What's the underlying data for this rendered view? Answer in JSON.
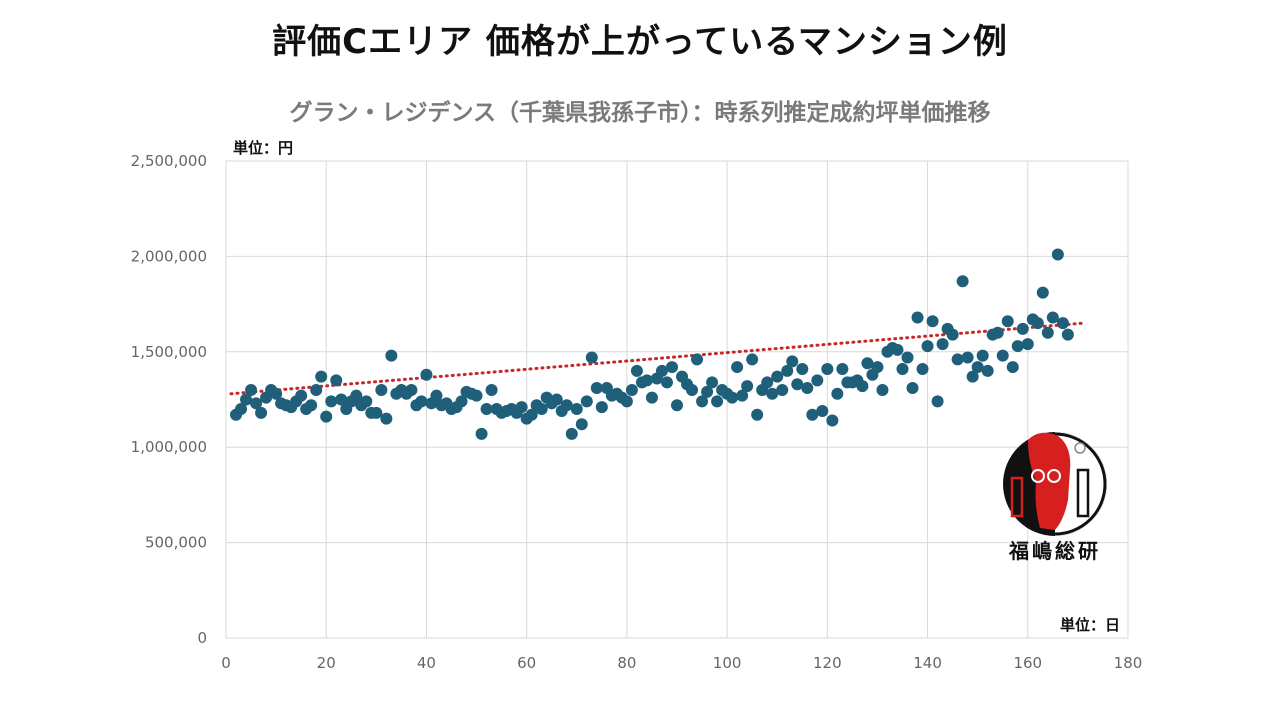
{
  "page": {
    "title": "評価Cエリア 価格が上がっているマンション例"
  },
  "logo": {
    "text": "福嶋総研"
  },
  "chart_data": {
    "type": "scatter",
    "title": "グラン・レジデンス（千葉県我孫子市）：時系列推定成約坪単価推移",
    "y_unit_label": "単位：円",
    "x_unit_label": "単位：日",
    "xlim": [
      0,
      180
    ],
    "ylim": [
      0,
      2500000
    ],
    "x_ticks": [
      0,
      20,
      40,
      60,
      80,
      100,
      120,
      140,
      160,
      180
    ],
    "y_ticks": [
      0,
      500000,
      1000000,
      1500000,
      2000000,
      2500000
    ],
    "y_tick_labels": [
      "0",
      "500,000",
      "1,000,000",
      "1,500,000",
      "2,000,000",
      "2,500,000"
    ],
    "grid": true,
    "marker_color": "#1f5f7a",
    "trendline": {
      "style": "dotted",
      "color": "#c62828",
      "start": [
        1,
        1280000
      ],
      "end": [
        171,
        1650000
      ]
    },
    "points": [
      [
        2,
        1170000
      ],
      [
        3,
        1200000
      ],
      [
        4,
        1250000
      ],
      [
        5,
        1300000
      ],
      [
        6,
        1230000
      ],
      [
        7,
        1180000
      ],
      [
        8,
        1260000
      ],
      [
        9,
        1300000
      ],
      [
        10,
        1280000
      ],
      [
        11,
        1230000
      ],
      [
        12,
        1220000
      ],
      [
        13,
        1210000
      ],
      [
        14,
        1240000
      ],
      [
        15,
        1270000
      ],
      [
        16,
        1200000
      ],
      [
        17,
        1220000
      ],
      [
        18,
        1300000
      ],
      [
        19,
        1370000
      ],
      [
        20,
        1160000
      ],
      [
        21,
        1240000
      ],
      [
        22,
        1350000
      ],
      [
        23,
        1250000
      ],
      [
        24,
        1200000
      ],
      [
        25,
        1240000
      ],
      [
        26,
        1270000
      ],
      [
        27,
        1220000
      ],
      [
        28,
        1240000
      ],
      [
        29,
        1180000
      ],
      [
        30,
        1180000
      ],
      [
        31,
        1300000
      ],
      [
        32,
        1150000
      ],
      [
        33,
        1480000
      ],
      [
        34,
        1280000
      ],
      [
        35,
        1300000
      ],
      [
        36,
        1280000
      ],
      [
        37,
        1300000
      ],
      [
        38,
        1220000
      ],
      [
        39,
        1240000
      ],
      [
        40,
        1380000
      ],
      [
        41,
        1230000
      ],
      [
        42,
        1270000
      ],
      [
        43,
        1220000
      ],
      [
        44,
        1230000
      ],
      [
        45,
        1200000
      ],
      [
        46,
        1210000
      ],
      [
        47,
        1240000
      ],
      [
        48,
        1290000
      ],
      [
        49,
        1280000
      ],
      [
        50,
        1270000
      ],
      [
        51,
        1070000
      ],
      [
        52,
        1200000
      ],
      [
        53,
        1300000
      ],
      [
        54,
        1200000
      ],
      [
        55,
        1180000
      ],
      [
        56,
        1190000
      ],
      [
        57,
        1200000
      ],
      [
        58,
        1180000
      ],
      [
        59,
        1210000
      ],
      [
        60,
        1150000
      ],
      [
        61,
        1170000
      ],
      [
        62,
        1220000
      ],
      [
        63,
        1200000
      ],
      [
        64,
        1260000
      ],
      [
        65,
        1230000
      ],
      [
        66,
        1250000
      ],
      [
        67,
        1190000
      ],
      [
        68,
        1220000
      ],
      [
        69,
        1070000
      ],
      [
        70,
        1200000
      ],
      [
        71,
        1120000
      ],
      [
        72,
        1240000
      ],
      [
        73,
        1470000
      ],
      [
        74,
        1310000
      ],
      [
        75,
        1210000
      ],
      [
        76,
        1310000
      ],
      [
        77,
        1270000
      ],
      [
        78,
        1280000
      ],
      [
        79,
        1260000
      ],
      [
        80,
        1240000
      ],
      [
        81,
        1300000
      ],
      [
        82,
        1400000
      ],
      [
        83,
        1340000
      ],
      [
        84,
        1350000
      ],
      [
        85,
        1260000
      ],
      [
        86,
        1360000
      ],
      [
        87,
        1400000
      ],
      [
        88,
        1340000
      ],
      [
        89,
        1420000
      ],
      [
        90,
        1220000
      ],
      [
        91,
        1370000
      ],
      [
        92,
        1330000
      ],
      [
        93,
        1300000
      ],
      [
        94,
        1460000
      ],
      [
        95,
        1240000
      ],
      [
        96,
        1290000
      ],
      [
        97,
        1340000
      ],
      [
        98,
        1240000
      ],
      [
        99,
        1300000
      ],
      [
        100,
        1280000
      ],
      [
        101,
        1260000
      ],
      [
        102,
        1420000
      ],
      [
        103,
        1270000
      ],
      [
        104,
        1320000
      ],
      [
        105,
        1460000
      ],
      [
        106,
        1170000
      ],
      [
        107,
        1300000
      ],
      [
        108,
        1340000
      ],
      [
        109,
        1280000
      ],
      [
        110,
        1370000
      ],
      [
        111,
        1300000
      ],
      [
        112,
        1400000
      ],
      [
        113,
        1450000
      ],
      [
        114,
        1330000
      ],
      [
        115,
        1410000
      ],
      [
        116,
        1310000
      ],
      [
        117,
        1170000
      ],
      [
        118,
        1350000
      ],
      [
        119,
        1190000
      ],
      [
        120,
        1410000
      ],
      [
        121,
        1140000
      ],
      [
        122,
        1280000
      ],
      [
        123,
        1410000
      ],
      [
        124,
        1340000
      ],
      [
        125,
        1340000
      ],
      [
        126,
        1350000
      ],
      [
        127,
        1320000
      ],
      [
        128,
        1440000
      ],
      [
        129,
        1380000
      ],
      [
        130,
        1420000
      ],
      [
        131,
        1300000
      ],
      [
        132,
        1500000
      ],
      [
        133,
        1520000
      ],
      [
        134,
        1510000
      ],
      [
        135,
        1410000
      ],
      [
        136,
        1470000
      ],
      [
        137,
        1310000
      ],
      [
        138,
        1680000
      ],
      [
        139,
        1410000
      ],
      [
        140,
        1530000
      ],
      [
        141,
        1660000
      ],
      [
        142,
        1240000
      ],
      [
        143,
        1540000
      ],
      [
        144,
        1620000
      ],
      [
        145,
        1590000
      ],
      [
        146,
        1460000
      ],
      [
        147,
        1870000
      ],
      [
        148,
        1470000
      ],
      [
        149,
        1370000
      ],
      [
        150,
        1420000
      ],
      [
        151,
        1480000
      ],
      [
        152,
        1400000
      ],
      [
        153,
        1590000
      ],
      [
        154,
        1600000
      ],
      [
        155,
        1480000
      ],
      [
        156,
        1660000
      ],
      [
        157,
        1420000
      ],
      [
        158,
        1530000
      ],
      [
        159,
        1620000
      ],
      [
        160,
        1540000
      ],
      [
        161,
        1670000
      ],
      [
        162,
        1650000
      ],
      [
        163,
        1810000
      ],
      [
        164,
        1600000
      ],
      [
        165,
        1680000
      ],
      [
        166,
        2010000
      ],
      [
        167,
        1650000
      ],
      [
        168,
        1590000
      ]
    ]
  }
}
